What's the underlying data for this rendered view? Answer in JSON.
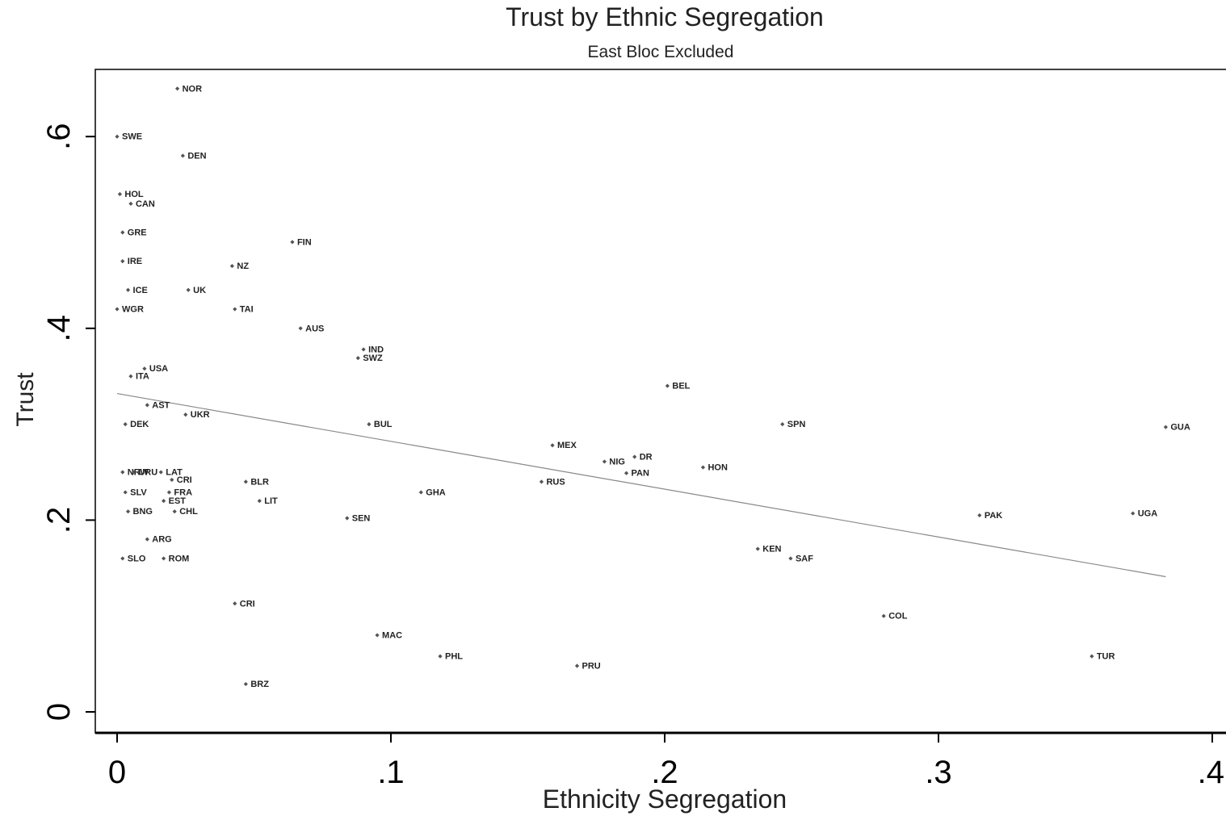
{
  "chart_data": {
    "type": "scatter",
    "title": "Trust by Ethnic Segregation",
    "subtitle": "East Bloc Excluded",
    "xlabel": "Ethnicity Segregation",
    "ylabel": "Trust",
    "xlim": [
      0,
      0.4
    ],
    "ylim": [
      0,
      0.65
    ],
    "x_ticks": [
      0,
      0.1,
      0.2,
      0.3,
      0.4
    ],
    "x_tick_labels": [
      "0",
      ".1",
      ".2",
      ".3",
      ".4"
    ],
    "y_ticks": [
      0,
      0.2,
      0.4,
      0.6
    ],
    "y_tick_labels": [
      "0",
      ".2",
      ".4",
      ".6"
    ],
    "grid": false,
    "legend": "none",
    "colors": {
      "points": "#555555",
      "fit_line": "#888888",
      "axes": "#000000",
      "text": "#222222"
    },
    "fit_line": {
      "x": [
        0,
        0.383
      ],
      "y": [
        0.332,
        0.141
      ]
    },
    "points": [
      {
        "label": "NOR",
        "x": 0.022,
        "y": 0.65
      },
      {
        "label": "SWE",
        "x": 0.0,
        "y": 0.6
      },
      {
        "label": "DEN",
        "x": 0.024,
        "y": 0.58
      },
      {
        "label": "HOL",
        "x": 0.001,
        "y": 0.54
      },
      {
        "label": "CAN",
        "x": 0.005,
        "y": 0.53
      },
      {
        "label": "GRE",
        "x": 0.002,
        "y": 0.5
      },
      {
        "label": "FIN",
        "x": 0.064,
        "y": 0.49
      },
      {
        "label": "IRE",
        "x": 0.002,
        "y": 0.47
      },
      {
        "label": "NZ",
        "x": 0.042,
        "y": 0.465
      },
      {
        "label": "ICE",
        "x": 0.004,
        "y": 0.44
      },
      {
        "label": "UK",
        "x": 0.026,
        "y": 0.44
      },
      {
        "label": "WGR",
        "x": 0.0,
        "y": 0.42
      },
      {
        "label": "TAI",
        "x": 0.043,
        "y": 0.42
      },
      {
        "label": "AUS",
        "x": 0.067,
        "y": 0.4
      },
      {
        "label": "IND",
        "x": 0.09,
        "y": 0.378
      },
      {
        "label": "SWZ",
        "x": 0.088,
        "y": 0.369
      },
      {
        "label": "USA",
        "x": 0.01,
        "y": 0.358
      },
      {
        "label": "ITA",
        "x": 0.005,
        "y": 0.35
      },
      {
        "label": "BEL",
        "x": 0.201,
        "y": 0.34
      },
      {
        "label": "AST",
        "x": 0.011,
        "y": 0.32
      },
      {
        "label": "UKR",
        "x": 0.025,
        "y": 0.31
      },
      {
        "label": "DEK",
        "x": 0.003,
        "y": 0.3
      },
      {
        "label": "BUL",
        "x": 0.092,
        "y": 0.3
      },
      {
        "label": "SPN",
        "x": 0.243,
        "y": 0.3
      },
      {
        "label": "GUA",
        "x": 0.383,
        "y": 0.297
      },
      {
        "label": "MEX",
        "x": 0.159,
        "y": 0.278
      },
      {
        "label": "DR",
        "x": 0.189,
        "y": 0.266
      },
      {
        "label": "NIG",
        "x": 0.178,
        "y": 0.261
      },
      {
        "label": "HON",
        "x": 0.214,
        "y": 0.255
      },
      {
        "label": "PAN",
        "x": 0.186,
        "y": 0.249
      },
      {
        "label": "NRW",
        "x": 0.002,
        "y": 0.25
      },
      {
        "label": "URU",
        "x": 0.006,
        "y": 0.25
      },
      {
        "label": "LAT",
        "x": 0.016,
        "y": 0.25
      },
      {
        "label": "CRI",
        "x": 0.02,
        "y": 0.242
      },
      {
        "label": "BLR",
        "x": 0.047,
        "y": 0.24
      },
      {
        "label": "RUS",
        "x": 0.155,
        "y": 0.24
      },
      {
        "label": "SLV",
        "x": 0.003,
        "y": 0.229
      },
      {
        "label": "FRA",
        "x": 0.019,
        "y": 0.229
      },
      {
        "label": "GHA",
        "x": 0.111,
        "y": 0.229
      },
      {
        "label": "EST",
        "x": 0.017,
        "y": 0.22
      },
      {
        "label": "LIT",
        "x": 0.052,
        "y": 0.22
      },
      {
        "label": "BNG",
        "x": 0.004,
        "y": 0.209
      },
      {
        "label": "CHL",
        "x": 0.021,
        "y": 0.209
      },
      {
        "label": "PAK",
        "x": 0.315,
        "y": 0.205
      },
      {
        "label": "UGA",
        "x": 0.371,
        "y": 0.207
      },
      {
        "label": "SEN",
        "x": 0.084,
        "y": 0.202
      },
      {
        "label": "ARG",
        "x": 0.011,
        "y": 0.18
      },
      {
        "label": "KEN",
        "x": 0.234,
        "y": 0.17
      },
      {
        "label": "SAF",
        "x": 0.246,
        "y": 0.16
      },
      {
        "label": "SLO",
        "x": 0.002,
        "y": 0.16
      },
      {
        "label": "ROM",
        "x": 0.017,
        "y": 0.16
      },
      {
        "label": "CRI",
        "x": 0.043,
        "y": 0.113
      },
      {
        "label": "COL",
        "x": 0.28,
        "y": 0.1
      },
      {
        "label": "MAC",
        "x": 0.095,
        "y": 0.08
      },
      {
        "label": "PHL",
        "x": 0.118,
        "y": 0.058
      },
      {
        "label": "TUR",
        "x": 0.356,
        "y": 0.058
      },
      {
        "label": "PRU",
        "x": 0.168,
        "y": 0.048
      },
      {
        "label": "BRZ",
        "x": 0.047,
        "y": 0.029
      }
    ]
  }
}
